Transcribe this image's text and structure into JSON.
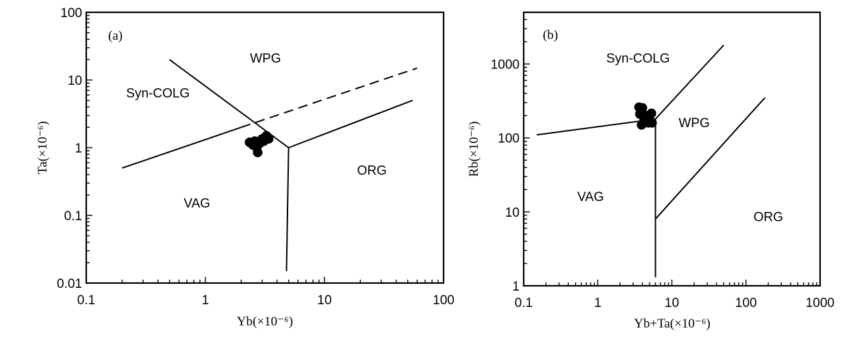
{
  "chart_data": [
    {
      "type": "scatter",
      "panel": "(a)",
      "xlabel": "Yb(×10⁻⁶)",
      "ylabel": "Ta(×10⁻⁶)",
      "xscale": "log",
      "yscale": "log",
      "xlim": [
        0.1,
        100
      ],
      "ylim": [
        0.01,
        100
      ],
      "x_ticks": [
        {
          "value": 0.1,
          "label": "0.1"
        },
        {
          "value": 1,
          "label": "1"
        },
        {
          "value": 10,
          "label": "10"
        },
        {
          "value": 100,
          "label": "100"
        }
      ],
      "y_ticks": [
        {
          "value": 0.01,
          "label": "0.01"
        },
        {
          "value": 0.1,
          "label": "0.1"
        },
        {
          "value": 1,
          "label": "1"
        },
        {
          "value": 10,
          "label": "10"
        },
        {
          "value": 100,
          "label": "100"
        }
      ],
      "regions": [
        {
          "name": "WPG",
          "x": 3.2,
          "y": 18
        },
        {
          "name": "Syn-COLG",
          "x": 0.4,
          "y": 5.5
        },
        {
          "name": "VAG",
          "x": 0.85,
          "y": 0.13
        },
        {
          "name": "ORG",
          "x": 25,
          "y": 0.4
        }
      ],
      "boundaries": [
        {
          "style": "solid",
          "points": [
            [
              0.5,
              20
            ],
            [
              5,
              1
            ]
          ]
        },
        {
          "style": "solid",
          "points": [
            [
              0.2,
              0.5
            ],
            [
              2.0,
              2.0
            ]
          ]
        },
        {
          "style": "dashed",
          "points": [
            [
              2.0,
              2.0
            ],
            [
              60,
              15
            ]
          ]
        },
        {
          "style": "solid",
          "points": [
            [
              5,
              1
            ],
            [
              55,
              5
            ]
          ]
        },
        {
          "style": "solid",
          "points": [
            [
              5,
              1
            ],
            [
              4.8,
              0.015
            ]
          ]
        }
      ],
      "series": [
        {
          "name": "samples",
          "points": [
            [
              2.35,
              1.2
            ],
            [
              2.5,
              1.1
            ],
            [
              2.6,
              1.25
            ],
            [
              2.7,
              1.0
            ],
            [
              2.75,
              0.85
            ],
            [
              2.85,
              1.15
            ],
            [
              3.0,
              1.35
            ],
            [
              3.1,
              1.25
            ],
            [
              3.25,
              1.5
            ],
            [
              3.4,
              1.35
            ]
          ]
        }
      ]
    },
    {
      "type": "scatter",
      "panel": "(b)",
      "xlabel": "Yb+Ta(×10⁻⁶)",
      "ylabel": "Rb(×10⁻⁶)",
      "xscale": "log",
      "yscale": "log",
      "xlim": [
        0.1,
        1000
      ],
      "ylim": [
        1,
        5000
      ],
      "x_ticks": [
        {
          "value": 0.1,
          "label": "0.1"
        },
        {
          "value": 1,
          "label": "1"
        },
        {
          "value": 10,
          "label": "10"
        },
        {
          "value": 100,
          "label": "100"
        },
        {
          "value": 1000,
          "label": "1000"
        }
      ],
      "y_ticks": [
        {
          "value": 1,
          "label": "1"
        },
        {
          "value": 10,
          "label": "10"
        },
        {
          "value": 100,
          "label": "100"
        },
        {
          "value": 1000,
          "label": "1000"
        }
      ],
      "regions": [
        {
          "name": "Syn-COLG",
          "x": 3.5,
          "y": 1050
        },
        {
          "name": "WPG",
          "x": 20,
          "y": 140
        },
        {
          "name": "VAG",
          "x": 0.8,
          "y": 14
        },
        {
          "name": "ORG",
          "x": 200,
          "y": 7.5
        }
      ],
      "boundaries": [
        {
          "style": "solid",
          "points": [
            [
              0.15,
              110
            ],
            [
              6,
              180
            ]
          ]
        },
        {
          "style": "solid",
          "points": [
            [
              6,
              180
            ],
            [
              50,
              1800
            ]
          ]
        },
        {
          "style": "solid",
          "points": [
            [
              6,
              180
            ],
            [
              6,
              1.3
            ]
          ]
        },
        {
          "style": "solid",
          "points": [
            [
              6,
              8
            ],
            [
              180,
              350
            ]
          ]
        }
      ],
      "series": [
        {
          "name": "samples",
          "points": [
            [
              3.6,
              260
            ],
            [
              4.0,
              255
            ],
            [
              3.7,
              210
            ],
            [
              4.2,
              185
            ],
            [
              4.6,
              200
            ],
            [
              5.0,
              175
            ],
            [
              5.3,
              215
            ],
            [
              4.8,
              160
            ],
            [
              3.9,
              150
            ],
            [
              5.4,
              160
            ]
          ]
        }
      ]
    }
  ]
}
